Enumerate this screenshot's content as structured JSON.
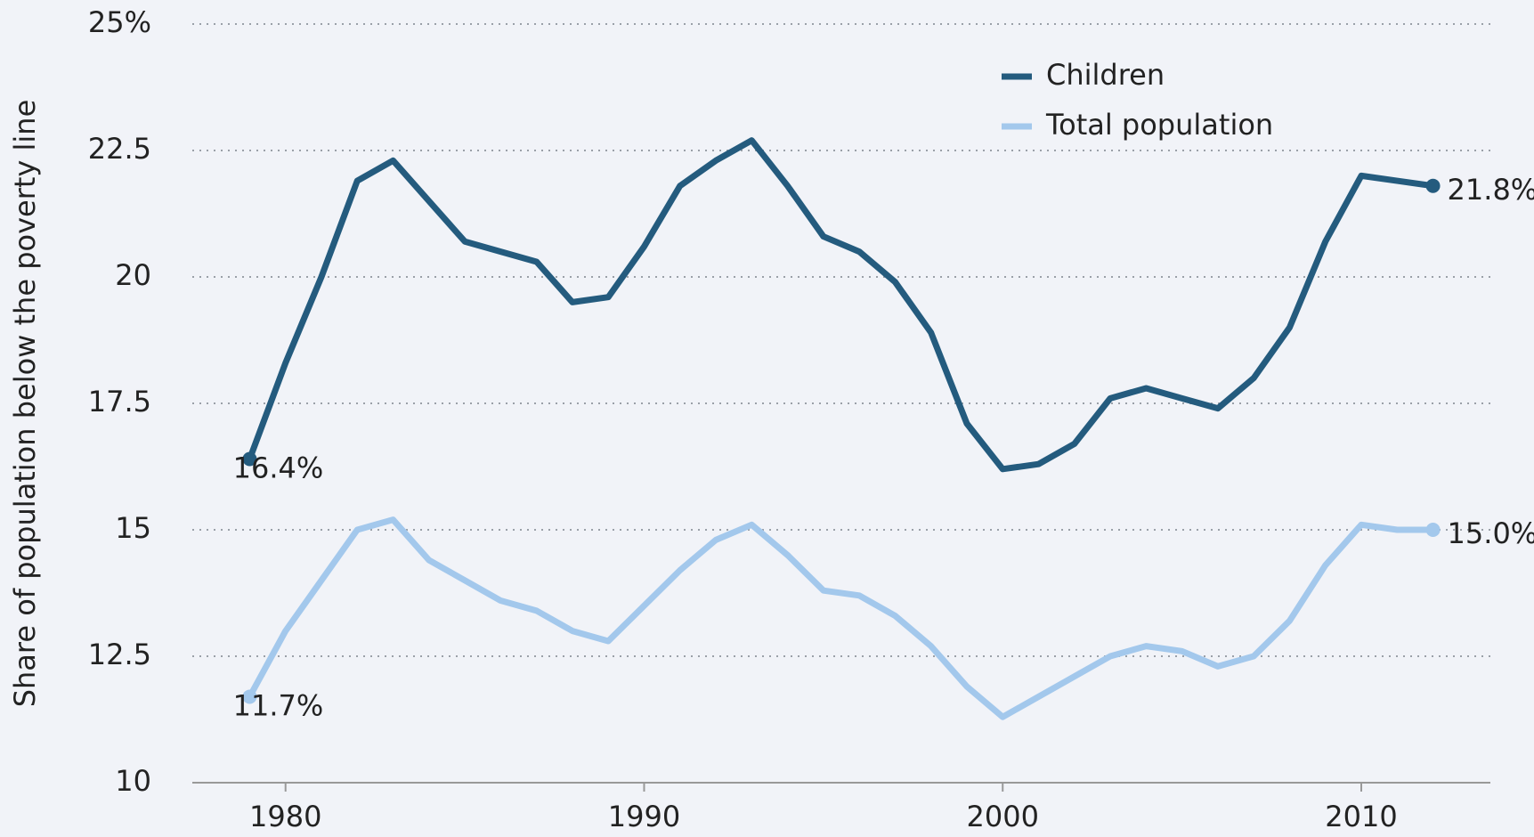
{
  "chart_data": {
    "type": "line",
    "y_label": "Share of population below the poverty line",
    "x": [
      1979,
      1980,
      1981,
      1982,
      1983,
      1984,
      1985,
      1986,
      1987,
      1988,
      1989,
      1990,
      1991,
      1992,
      1993,
      1994,
      1995,
      1996,
      1997,
      1998,
      1999,
      2000,
      2001,
      2002,
      2003,
      2004,
      2005,
      2006,
      2007,
      2008,
      2009,
      2010,
      2011,
      2012
    ],
    "series": [
      {
        "name": "Children",
        "color": "#245b7e",
        "start_label": "16.4%",
        "end_label": "21.8%",
        "values": [
          16.4,
          18.3,
          20.0,
          21.9,
          22.3,
          21.5,
          20.7,
          20.5,
          20.3,
          19.5,
          19.6,
          20.6,
          21.8,
          22.3,
          22.7,
          21.8,
          20.8,
          20.5,
          19.9,
          18.9,
          17.1,
          16.2,
          16.3,
          16.7,
          17.6,
          17.8,
          17.6,
          17.4,
          18.0,
          19.0,
          20.7,
          22.0,
          21.9,
          21.8
        ]
      },
      {
        "name": "Total population",
        "color": "#a3c8ec",
        "start_label": "11.7%",
        "end_label": "15.0%",
        "values": [
          11.7,
          13.0,
          14.0,
          15.0,
          15.2,
          14.4,
          14.0,
          13.6,
          13.4,
          13.0,
          12.8,
          13.5,
          14.2,
          14.8,
          15.1,
          14.5,
          13.8,
          13.7,
          13.3,
          12.7,
          11.9,
          11.3,
          11.7,
          12.1,
          12.5,
          12.7,
          12.6,
          12.3,
          12.5,
          13.2,
          14.3,
          15.1,
          15.0,
          15.0
        ]
      }
    ],
    "xlim": [
      1977.4,
      2013.6
    ],
    "xticks": [
      1980,
      1990,
      2000,
      2010
    ],
    "ylim": [
      10,
      25
    ],
    "yticks": [
      10,
      12.5,
      15,
      17.5,
      20,
      22.5,
      {
        "value": 25,
        "label": "25%"
      }
    ],
    "grid": true,
    "legend": "upper right"
  }
}
